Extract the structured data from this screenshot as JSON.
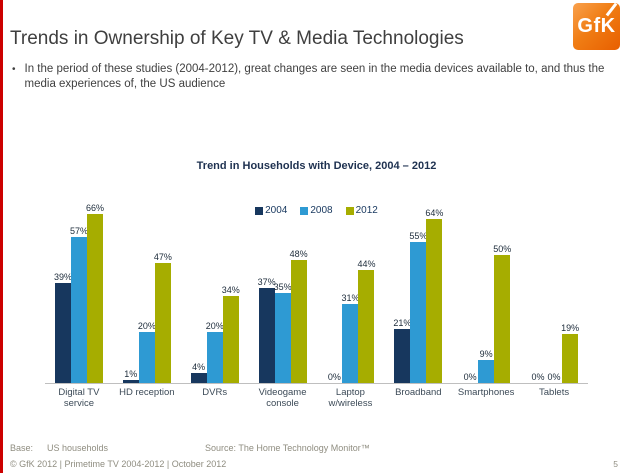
{
  "slide": {
    "title": "Trends in Ownership of Key TV & Media Technologies",
    "bullet_marker": "•",
    "bullet": "In the period of these studies (2004-2012), great changes are seen in the media devices available to, and thus the media experiences of, the US audience",
    "page_number": "5"
  },
  "logo": {
    "text": "GfK"
  },
  "footer": {
    "base_label": "Base:",
    "base_value": "US households",
    "source": "Source: The Home Technology Monitor™",
    "copyright": "© GfK 2012 | Primetime TV 2004-2012 | October 2012"
  },
  "chart_data": {
    "type": "bar",
    "title": "Trend in Households with Device, 2004 – 2012",
    "categories": [
      "Digital TV service",
      "HD reception",
      "DVRs",
      "Videogame console",
      "Laptop w/wireless",
      "Broadband",
      "Smartphones",
      "Tablets"
    ],
    "series": [
      {
        "name": "2004",
        "color": "#17375e",
        "values": [
          39,
          1,
          4,
          37,
          0,
          21,
          0,
          0
        ]
      },
      {
        "name": "2008",
        "color": "#2e9ad3",
        "values": [
          57,
          20,
          20,
          35,
          31,
          55,
          9,
          0
        ]
      },
      {
        "name": "2012",
        "color": "#a6ad00",
        "values": [
          66,
          47,
          34,
          48,
          44,
          64,
          50,
          19
        ]
      }
    ],
    "value_suffix": "%",
    "ylim": [
      0,
      70
    ],
    "grid": false,
    "legend_position": "top",
    "axis_line_color": "#bfbfbf",
    "data_labels": true
  }
}
